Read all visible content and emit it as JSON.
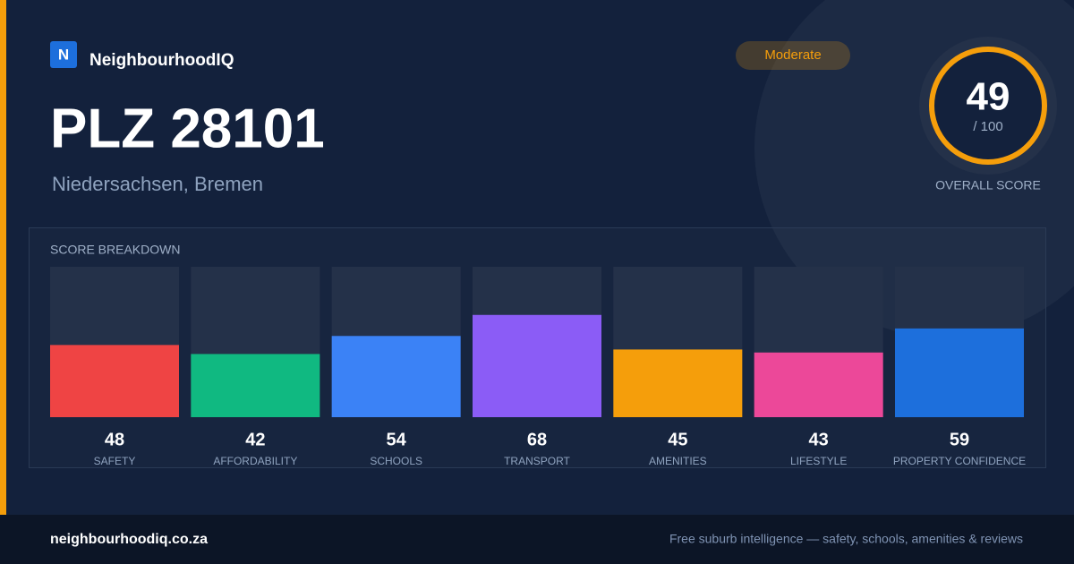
{
  "brand": "NeighbourhoodIQ",
  "logo": "N",
  "badge": "Moderate",
  "title": "PLZ 28101",
  "subtitle": "Niedersachsen, Bremen",
  "score": {
    "value": 49,
    "max": "/ 100",
    "label": "OVERALL SCORE"
  },
  "chart_data": {
    "type": "bar",
    "title": "SCORE BREAKDOWN",
    "categories": [
      "SAFETY",
      "AFFORDABILITY",
      "SCHOOLS",
      "TRANSPORT",
      "AMENITIES",
      "LIFESTYLE",
      "PROPERTY CONFIDENCE"
    ],
    "values": [
      48,
      42,
      54,
      68,
      45,
      43,
      59
    ],
    "colors": [
      "#ef4444",
      "#10b981",
      "#3b82f6",
      "#8b5cf6",
      "#f59e0b",
      "#ec4899",
      "#1d6fdc"
    ],
    "ylim": [
      0,
      100
    ]
  },
  "footer": {
    "url": "neighbourhoodiq.co.za",
    "tagline": "Free suburb intelligence — safety, schools, amenities & reviews"
  }
}
